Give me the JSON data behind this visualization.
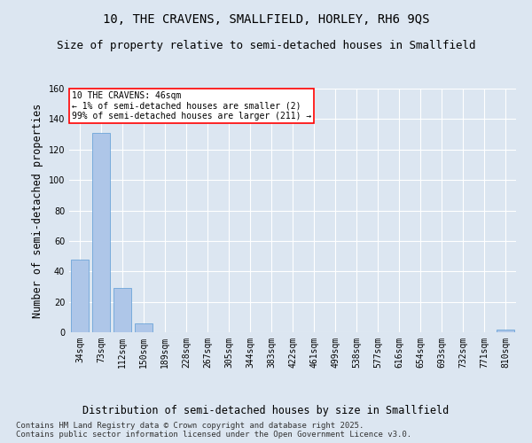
{
  "title": "10, THE CRAVENS, SMALLFIELD, HORLEY, RH6 9QS",
  "subtitle": "Size of property relative to semi-detached houses in Smallfield",
  "xlabel": "Distribution of semi-detached houses by size in Smallfield",
  "ylabel": "Number of semi-detached properties",
  "categories": [
    "34sqm",
    "73sqm",
    "112sqm",
    "150sqm",
    "189sqm",
    "228sqm",
    "267sqm",
    "305sqm",
    "344sqm",
    "383sqm",
    "422sqm",
    "461sqm",
    "499sqm",
    "538sqm",
    "577sqm",
    "616sqm",
    "654sqm",
    "693sqm",
    "732sqm",
    "771sqm",
    "810sqm"
  ],
  "values": [
    48,
    131,
    29,
    6,
    0,
    0,
    0,
    0,
    0,
    0,
    0,
    0,
    0,
    0,
    0,
    0,
    0,
    0,
    0,
    0,
    2
  ],
  "bar_color": "#aec6e8",
  "bar_edge_color": "#5b9bd5",
  "annotation_text": "10 THE CRAVENS: 46sqm\n← 1% of semi-detached houses are smaller (2)\n99% of semi-detached houses are larger (211) →",
  "annotation_box_color": "#ffffff",
  "annotation_border_color": "red",
  "background_color": "#dce6f1",
  "plot_bg_color": "#dce6f1",
  "footer": "Contains HM Land Registry data © Crown copyright and database right 2025.\nContains public sector information licensed under the Open Government Licence v3.0.",
  "ylim": [
    0,
    160
  ],
  "yticks": [
    0,
    20,
    40,
    60,
    80,
    100,
    120,
    140,
    160
  ],
  "grid_color": "#ffffff",
  "title_fontsize": 10,
  "subtitle_fontsize": 9,
  "xlabel_fontsize": 8.5,
  "ylabel_fontsize": 8.5,
  "tick_fontsize": 7,
  "footer_fontsize": 6.5,
  "annotation_fontsize": 7
}
